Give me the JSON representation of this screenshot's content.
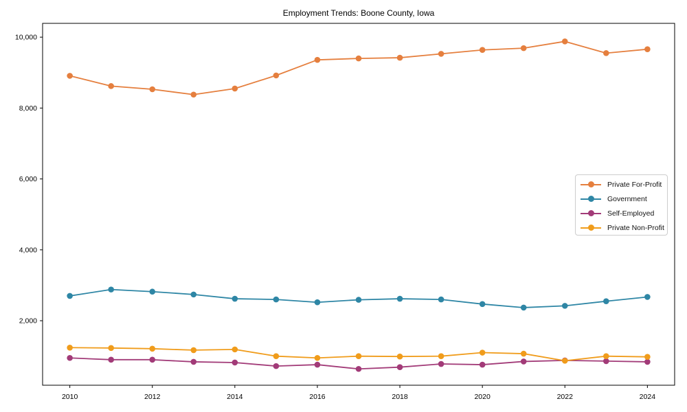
{
  "chart_data": {
    "type": "line",
    "title": "Employment Trends: Boone County, Iowa",
    "xlabel": "",
    "ylabel": "",
    "x": [
      2010,
      2011,
      2012,
      2013,
      2014,
      2015,
      2016,
      2017,
      2018,
      2019,
      2020,
      2021,
      2022,
      2023,
      2024
    ],
    "x_ticks": [
      2010,
      2012,
      2014,
      2016,
      2018,
      2020,
      2022,
      2024
    ],
    "x_tick_labels": [
      "2010",
      "2012",
      "2014",
      "2016",
      "2018",
      "2020",
      "2022",
      "2024"
    ],
    "y_ticks": [
      2000,
      4000,
      6000,
      8000,
      10000
    ],
    "y_tick_labels": [
      "2,000",
      "4,000",
      "6,000",
      "8,000",
      "10,000"
    ],
    "xlim": [
      2009.34,
      2024.66
    ],
    "ylim": [
      180,
      10390
    ],
    "grid": false,
    "legend_position": "center-right",
    "axis_color": "#000000",
    "background_color": "#ffffff",
    "series": [
      {
        "name": "Private For-Profit",
        "color": "#e57f3e",
        "values": [
          8910,
          8620,
          8530,
          8380,
          8550,
          8920,
          9360,
          9400,
          9420,
          9530,
          9640,
          9690,
          9880,
          9550,
          9660
        ]
      },
      {
        "name": "Government",
        "color": "#2e86a5",
        "values": [
          2700,
          2880,
          2820,
          2740,
          2620,
          2600,
          2520,
          2590,
          2620,
          2600,
          2470,
          2370,
          2420,
          2550,
          2670
        ]
      },
      {
        "name": "Self-Employed",
        "color": "#a23b78",
        "values": [
          950,
          900,
          900,
          840,
          820,
          720,
          760,
          640,
          690,
          780,
          760,
          850,
          880,
          860,
          840
        ]
      },
      {
        "name": "Private Non-Profit",
        "color": "#f09c1b",
        "values": [
          1240,
          1230,
          1210,
          1170,
          1190,
          1000,
          950,
          1000,
          990,
          1000,
          1100,
          1070,
          870,
          1000,
          980
        ]
      }
    ]
  }
}
